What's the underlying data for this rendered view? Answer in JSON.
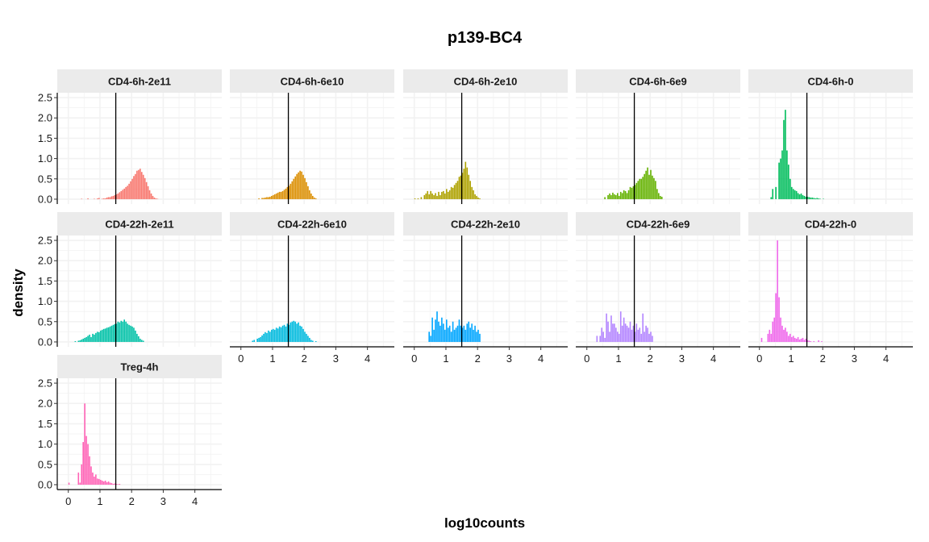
{
  "chart_data": {
    "type": "bar",
    "title": "p139-BC4",
    "xlabel": "log10counts",
    "ylabel": "density",
    "xlim": [
      -0.35,
      4.85
    ],
    "ylim": [
      -0.12,
      2.62
    ],
    "xticks": [
      0,
      1,
      2,
      3,
      4
    ],
    "yticks": [
      0.0,
      0.5,
      1.0,
      1.5,
      2.0,
      2.5
    ],
    "ytick_labels": [
      "0.0",
      "0.5",
      "1.0",
      "1.5",
      "2.0",
      "2.5"
    ],
    "threshold_line_x": 1.5,
    "bin_width": 0.05,
    "grid": true,
    "panels": [
      {
        "name": "CD4-6h-2e11",
        "color": "#F8766D",
        "x_start": 0.4,
        "values": [
          0.01,
          0,
          0,
          0,
          0.02,
          0,
          0,
          0,
          0.01,
          0,
          0.02,
          0.03,
          0,
          0.01,
          0.02,
          0.02,
          0.04,
          0.05,
          0.05,
          0.07,
          0.08,
          0.1,
          0.12,
          0.14,
          0.17,
          0.2,
          0.23,
          0.26,
          0.3,
          0.33,
          0.38,
          0.44,
          0.5,
          0.57,
          0.62,
          0.7,
          0.72,
          0.75,
          0.67,
          0.6,
          0.52,
          0.42,
          0.32,
          0.22,
          0.14,
          0.08,
          0.04,
          0.02,
          0.01
        ]
      },
      {
        "name": "CD4-6h-6e10",
        "color": "#DB8E00",
        "x_start": 0.55,
        "values": [
          0.02,
          0,
          0.03,
          0.03,
          0.04,
          0.05,
          0.05,
          0.06,
          0.08,
          0.1,
          0.12,
          0.14,
          0.16,
          0.18,
          0.18,
          0.2,
          0.23,
          0.26,
          0.3,
          0.33,
          0.38,
          0.44,
          0.5,
          0.56,
          0.62,
          0.66,
          0.7,
          0.68,
          0.6,
          0.52,
          0.42,
          0.32,
          0.22,
          0.14,
          0.08,
          0.04,
          0.02
        ]
      },
      {
        "name": "CD4-6h-2e10",
        "color": "#AEA200",
        "x_start": 0.0,
        "values": [
          0.02,
          0,
          0.02,
          0,
          0.05,
          0,
          0.1,
          0.14,
          0.2,
          0.12,
          0.2,
          0.14,
          0.1,
          0.15,
          0.08,
          0.18,
          0.1,
          0.18,
          0.2,
          0.14,
          0.25,
          0.18,
          0.22,
          0.3,
          0.28,
          0.35,
          0.4,
          0.45,
          0.55,
          0.58,
          0.65,
          0.75,
          0.92,
          0.78,
          0.6,
          0.45,
          0.3,
          0.22,
          0.12,
          0.08,
          0.04,
          0.02
        ]
      },
      {
        "name": "CD4-6h-6e9",
        "color": "#64B200",
        "x_start": 0.55,
        "values": [
          0.05,
          0,
          0.1,
          0.14,
          0.1,
          0.16,
          0.12,
          0.1,
          0.15,
          0.08,
          0.18,
          0.15,
          0.22,
          0.2,
          0.15,
          0.22,
          0.3,
          0.28,
          0.32,
          0.35,
          0.4,
          0.45,
          0.5,
          0.5,
          0.55,
          0.62,
          0.7,
          0.78,
          0.6,
          0.72,
          0.58,
          0.52,
          0.45,
          0.25,
          0.15,
          0.08,
          0.06
        ]
      },
      {
        "name": "CD4-6h-0",
        "color": "#00BD5C",
        "x_start": 0.35,
        "values": [
          0.05,
          0.25,
          0,
          0.3,
          0,
          0.9,
          1.0,
          1.2,
          1.95,
          2.2,
          1.2,
          0.85,
          0.5,
          0.3,
          0.25,
          0.22,
          0.2,
          0.15,
          0.12,
          0.14,
          0.1,
          0.08,
          0.06,
          0.06,
          0.05,
          0.04,
          0.04,
          0.03,
          0.02,
          0.03,
          0.02,
          0.01,
          0,
          0.01
        ]
      },
      {
        "name": "CD4-22h-2e11",
        "color": "#00C1A7",
        "x_start": 0.2,
        "values": [
          0.02,
          0,
          0.03,
          0.04,
          0.06,
          0.08,
          0.1,
          0.12,
          0.15,
          0.18,
          0.12,
          0.2,
          0.18,
          0.22,
          0.25,
          0.24,
          0.28,
          0.3,
          0.32,
          0.33,
          0.35,
          0.36,
          0.38,
          0.4,
          0.42,
          0.44,
          0.45,
          0.5,
          0.48,
          0.52,
          0.5,
          0.55,
          0.5,
          0.45,
          0.42,
          0.4,
          0.38,
          0.35,
          0.28,
          0.2,
          0.14,
          0.08,
          0.05,
          0.03
        ]
      },
      {
        "name": "CD4-22h-6e10",
        "color": "#00BADE",
        "x_start": 0.35,
        "values": [
          0.03,
          0.05,
          0,
          0.08,
          0.1,
          0.12,
          0.16,
          0.2,
          0.24,
          0.22,
          0.28,
          0.25,
          0.3,
          0.32,
          0.3,
          0.35,
          0.33,
          0.38,
          0.36,
          0.4,
          0.42,
          0.38,
          0.45,
          0.42,
          0.48,
          0.5,
          0.52,
          0.5,
          0.45,
          0.48,
          0.4,
          0.38,
          0.32,
          0.25,
          0.2,
          0.15,
          0.1,
          0.05,
          0.03,
          0,
          0.02
        ]
      },
      {
        "name": "CD4-22h-2e10",
        "color": "#00A6FF",
        "x_start": 0.45,
        "values": [
          0.25,
          0.15,
          0.6,
          0.3,
          0.55,
          0.75,
          0.5,
          0.4,
          0.6,
          0.45,
          0.3,
          0.55,
          0.35,
          0.4,
          0.25,
          0.5,
          0.3,
          0.35,
          0.4,
          0.55,
          0.4,
          0.35,
          0.4,
          0.3,
          0.45,
          0.5,
          0.35,
          0.45,
          0.3,
          0.4,
          0.25,
          0.3,
          0.2
        ]
      },
      {
        "name": "CD4-22h-6e9",
        "color": "#B385FF",
        "x_start": 0.3,
        "values": [
          0.15,
          0,
          0.15,
          0.35,
          0.25,
          0.1,
          0.7,
          0.5,
          0.25,
          0.65,
          0.45,
          0.45,
          0.35,
          0.25,
          0.2,
          0.75,
          0.4,
          0.6,
          0.45,
          0.4,
          0.35,
          0.5,
          0.3,
          0.4,
          0.25,
          0.45,
          0.3,
          0.35,
          0.2,
          0.7,
          0.25,
          0.4,
          0.35,
          0.2,
          0.25,
          0.15
        ]
      },
      {
        "name": "CD4-22h-0",
        "color": "#EF67EB",
        "x_start": 0.05,
        "values": [
          0.1,
          0,
          0,
          0,
          0.2,
          0.3,
          0.2,
          0.5,
          0.6,
          1.2,
          2.5,
          1.1,
          0.6,
          0.4,
          0.3,
          0.35,
          0.25,
          0.15,
          0.2,
          0.12,
          0.15,
          0.1,
          0.08,
          0.12,
          0.06,
          0.08,
          0.1,
          0.05,
          0.08,
          0.04,
          0.03,
          0.02,
          0,
          0.02,
          0,
          0,
          0.04,
          0,
          0.02
        ]
      },
      {
        "name": "Treg-4h",
        "color": "#FF63B6",
        "x_start": 0.0,
        "values": [
          0.05,
          0,
          0,
          0,
          0,
          0,
          0.3,
          0.05,
          0.5,
          1.05,
          2.0,
          1.2,
          1.0,
          0.7,
          0.45,
          0.3,
          0.2,
          0.25,
          0.15,
          0.14,
          0.12,
          0.1,
          0.08,
          0.1,
          0.06,
          0.08,
          0.05,
          0.04,
          0.02,
          0.03,
          0.02,
          0.01,
          0.02
        ]
      }
    ]
  }
}
